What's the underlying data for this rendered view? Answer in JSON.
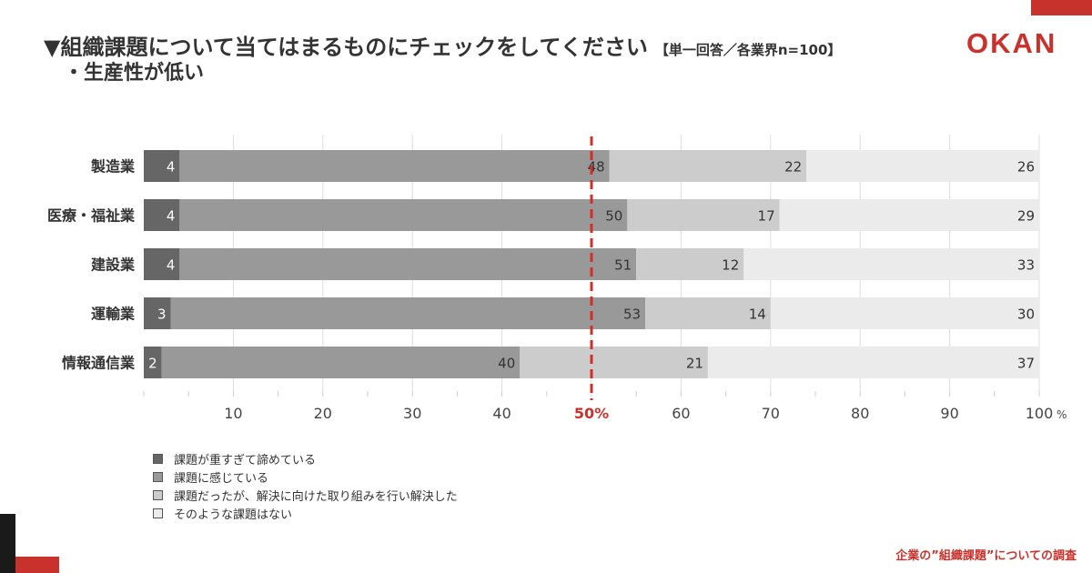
{
  "header": {
    "title": "▼組織課題について当てはまるものにチェックをしてください",
    "note": "【単一回答／各業界n=100】",
    "subtitle": "・生産性が低い",
    "logo": "OKAN"
  },
  "footer": {
    "text": "企業の”組織課題”についての調査"
  },
  "colors": {
    "accent": "#c8322c",
    "series": [
      "#666666",
      "#999999",
      "#cccccc",
      "#ebebeb"
    ]
  },
  "chart_data": {
    "type": "bar",
    "orientation": "horizontal",
    "stacked": true,
    "categories": [
      "製造業",
      "医療・福祉業",
      "建設業",
      "運輸業",
      "情報通信業"
    ],
    "series": [
      {
        "name": "課題が重すぎて諦めている",
        "values": [
          4,
          4,
          4,
          3,
          2
        ]
      },
      {
        "name": "課題に感じている",
        "values": [
          48,
          50,
          51,
          53,
          40
        ]
      },
      {
        "name": "課題だったが、解決に向けた取り組みを行い解決した",
        "values": [
          22,
          17,
          12,
          14,
          21
        ]
      },
      {
        "name": "そのような課題はない",
        "values": [
          26,
          29,
          33,
          30,
          37
        ]
      }
    ],
    "x_ticks": [
      "10",
      "20",
      "30",
      "40",
      "50%",
      "60",
      "70",
      "80",
      "90",
      "100"
    ],
    "x_unit": "%",
    "xlim": [
      0,
      100
    ],
    "reference_line": {
      "value": 50,
      "color": "#c8322c"
    },
    "grid": true,
    "legend_position": "bottom-left"
  }
}
